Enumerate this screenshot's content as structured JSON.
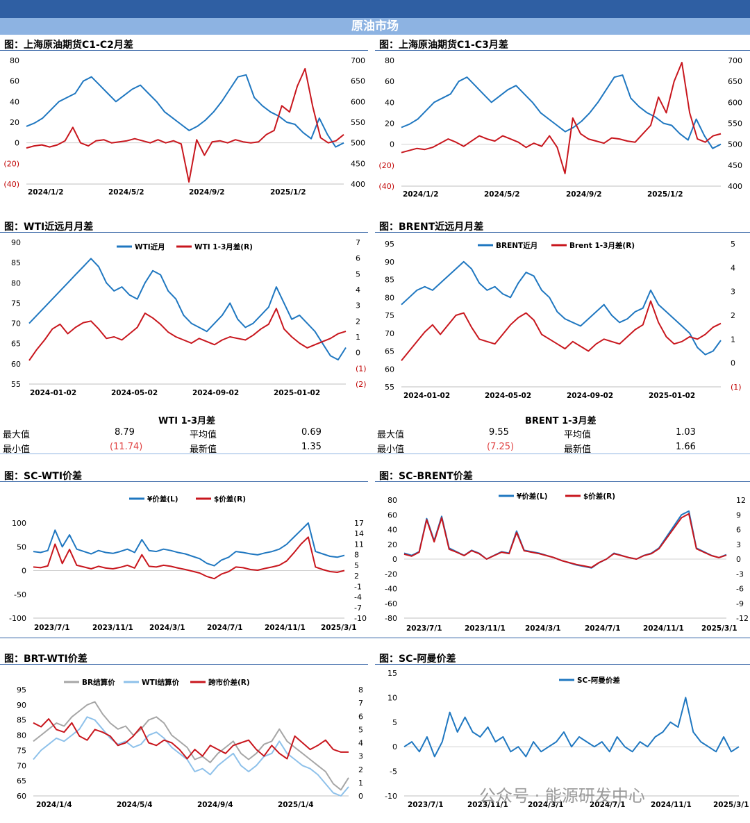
{
  "header": {
    "title": "原油市场"
  },
  "colors": {
    "blue": "#1f77c0",
    "red": "#c8161d",
    "gray": "#a6a6a6",
    "lightblue": "#8ec1ea"
  },
  "watermark": "公众号 · 能源研发中心",
  "stats": {
    "wti": {
      "title": "WTI 1-3月差",
      "max_label": "最大值",
      "max": "8.79",
      "avg_label": "平均值",
      "avg": "0.69",
      "min_label": "最小值",
      "min": "(11.74)",
      "latest_label": "最新值",
      "latest": "1.35"
    },
    "brent": {
      "title": "BRENT 1-3月差",
      "max_label": "最大值",
      "max": "9.55",
      "avg_label": "平均值",
      "avg": "1.03",
      "min_label": "最小值",
      "min": "(7.25)",
      "latest_label": "最新值",
      "latest": "1.66"
    }
  },
  "chart_data": [
    {
      "id": "c1",
      "title": "图：上海原油期货C1-C2月差",
      "type": "line",
      "x_ticks": [
        "2024/1/2",
        "2024/5/2",
        "2024/9/2",
        "2025/1/2"
      ],
      "y_left": {
        "range": [
          -40,
          80
        ],
        "ticks": [
          "80",
          "60",
          "40",
          "20",
          "0",
          "(20)",
          "(40)"
        ]
      },
      "y_right": {
        "range": [
          400,
          700
        ],
        "ticks": [
          "700",
          "650",
          "600",
          "550",
          "500",
          "450",
          "400"
        ]
      },
      "series": [
        {
          "axis": "right",
          "color": "#1f77c0",
          "values": [
            540,
            548,
            560,
            580,
            600,
            610,
            620,
            650,
            660,
            640,
            620,
            600,
            615,
            630,
            640,
            620,
            600,
            575,
            560,
            545,
            530,
            540,
            555,
            575,
            600,
            630,
            660,
            665,
            610,
            590,
            575,
            565,
            550,
            545,
            525,
            510,
            560,
            520,
            490,
            500
          ]
        },
        {
          "axis": "left",
          "color": "#c8161d",
          "values": [
            -5,
            -3,
            -2,
            -4,
            -2,
            2,
            15,
            0,
            -3,
            2,
            3,
            0,
            1,
            2,
            4,
            2,
            0,
            3,
            0,
            2,
            -1,
            -38,
            3,
            -12,
            1,
            2,
            0,
            3,
            1,
            0,
            1,
            8,
            12,
            36,
            30,
            55,
            72,
            35,
            5,
            0,
            2,
            8
          ]
        }
      ]
    },
    {
      "id": "c2",
      "title": "图：上海原油期货C1-C3月差",
      "type": "line",
      "x_ticks": [
        "2024/1/2",
        "2024/5/2",
        "2024/9/2",
        "2025/1/2"
      ],
      "y_left": {
        "range": [
          -40,
          80
        ],
        "ticks": [
          "80",
          "60",
          "40",
          "20",
          "0",
          "(20)",
          "(40)"
        ]
      },
      "y_right": {
        "range": [
          400,
          700
        ],
        "ticks": [
          "700",
          "650",
          "600",
          "550",
          "500",
          "450",
          "400"
        ]
      },
      "series": [
        {
          "axis": "right",
          "color": "#1f77c0",
          "values": [
            540,
            548,
            560,
            580,
            600,
            610,
            620,
            650,
            660,
            640,
            620,
            600,
            615,
            630,
            640,
            620,
            600,
            575,
            560,
            545,
            530,
            540,
            555,
            575,
            600,
            630,
            660,
            665,
            610,
            590,
            575,
            565,
            550,
            545,
            525,
            510,
            560,
            520,
            490,
            500
          ]
        },
        {
          "axis": "left",
          "color": "#c8161d",
          "values": [
            -8,
            -6,
            -4,
            -5,
            -3,
            1,
            5,
            2,
            -2,
            3,
            8,
            5,
            3,
            8,
            5,
            2,
            -3,
            1,
            -2,
            8,
            -3,
            -28,
            25,
            10,
            5,
            3,
            1,
            6,
            5,
            3,
            2,
            10,
            18,
            45,
            30,
            60,
            78,
            30,
            5,
            2,
            8,
            10
          ]
        }
      ]
    },
    {
      "id": "c3",
      "title": "图：WTI近远月月差",
      "type": "line",
      "x_ticks": [
        "2024-01-02",
        "2024-05-02",
        "2024-09-02",
        "2025-01-02"
      ],
      "y_left": {
        "range": [
          55,
          90
        ],
        "ticks": [
          "90",
          "85",
          "80",
          "75",
          "70",
          "65",
          "60",
          "55"
        ]
      },
      "y_right": {
        "range": [
          -2,
          7
        ],
        "ticks": [
          "7",
          "6",
          "5",
          "4",
          "3",
          "2",
          "1",
          "0",
          "(1)",
          "(2)"
        ]
      },
      "legend": [
        "WTI近月",
        "WTI 1-3月差(R)"
      ],
      "series": [
        {
          "name": "WTI近月",
          "axis": "left",
          "color": "#1f77c0",
          "values": [
            70,
            72,
            74,
            76,
            78,
            80,
            82,
            84,
            86,
            84,
            80,
            78,
            79,
            77,
            76,
            80,
            83,
            82,
            78,
            76,
            72,
            70,
            69,
            68,
            70,
            72,
            75,
            71,
            69,
            70,
            72,
            74,
            79,
            75,
            71,
            72,
            70,
            68,
            65,
            62,
            61,
            64
          ]
        },
        {
          "name": "WTI 1-3月差(R)",
          "axis": "right",
          "color": "#c8161d",
          "values": [
            -0.5,
            0.2,
            0.8,
            1.5,
            1.8,
            1.2,
            1.6,
            1.9,
            2.0,
            1.5,
            0.9,
            1.0,
            0.8,
            1.2,
            1.6,
            2.5,
            2.2,
            1.8,
            1.3,
            1.0,
            0.8,
            0.6,
            0.9,
            0.7,
            0.5,
            0.8,
            1.0,
            0.9,
            0.8,
            1.1,
            1.5,
            1.8,
            2.8,
            1.5,
            1.0,
            0.6,
            0.3,
            0.5,
            0.7,
            0.9,
            1.2,
            1.35
          ]
        }
      ]
    },
    {
      "id": "c4",
      "title": "图：BRENT近远月月差",
      "type": "line",
      "x_ticks": [
        "2024-01-02",
        "2024-05-02",
        "2024-09-02",
        "2025-01-02"
      ],
      "y_left": {
        "range": [
          55,
          95
        ],
        "ticks": [
          "95",
          "90",
          "85",
          "80",
          "75",
          "70",
          "65",
          "60",
          "55"
        ]
      },
      "y_right": {
        "range": [
          -1,
          5
        ],
        "ticks": [
          "5",
          "4",
          "3",
          "2",
          "1",
          "0",
          "(1)"
        ]
      },
      "legend": [
        "BRENT近月",
        "Brent 1-3月差(R)"
      ],
      "series": [
        {
          "name": "BRENT近月",
          "axis": "left",
          "color": "#1f77c0",
          "values": [
            78,
            80,
            82,
            83,
            82,
            84,
            86,
            88,
            90,
            88,
            84,
            82,
            83,
            81,
            80,
            84,
            87,
            86,
            82,
            80,
            76,
            74,
            73,
            72,
            74,
            76,
            78,
            75,
            73,
            74,
            76,
            77,
            82,
            78,
            76,
            74,
            72,
            70,
            66,
            64,
            65,
            68
          ]
        },
        {
          "name": "Brent 1-3月差(R)",
          "axis": "right",
          "color": "#c8161d",
          "values": [
            0.1,
            0.5,
            0.9,
            1.3,
            1.6,
            1.2,
            1.6,
            2.0,
            2.1,
            1.5,
            1.0,
            0.9,
            0.8,
            1.2,
            1.6,
            1.9,
            2.1,
            1.8,
            1.2,
            1.0,
            0.8,
            0.6,
            0.9,
            0.7,
            0.5,
            0.8,
            1.0,
            0.9,
            0.8,
            1.1,
            1.4,
            1.6,
            2.6,
            1.7,
            1.1,
            0.8,
            0.9,
            1.1,
            1.0,
            1.2,
            1.5,
            1.66
          ]
        }
      ]
    },
    {
      "id": "c5",
      "title": "图：SC-WTI价差",
      "type": "line",
      "x_ticks": [
        "2023/7/1",
        "2023/11/1",
        "2024/3/1",
        "2024/7/1",
        "2024/11/1",
        "2025/3/1"
      ],
      "y_left": {
        "range": [
          -100,
          100
        ],
        "ticks": [
          "100",
          "50",
          "0",
          "-50",
          "-100"
        ]
      },
      "y_right": {
        "range": [
          -10,
          17
        ],
        "ticks": [
          "17",
          "14",
          "11",
          "8",
          "5",
          "2",
          "-1",
          "-4",
          "-7",
          "-10"
        ]
      },
      "legend": [
        "¥价差(L)",
        "$价差(R)"
      ],
      "series": [
        {
          "name": "¥价差(L)",
          "axis": "left",
          "color": "#1f77c0",
          "values": [
            40,
            38,
            42,
            85,
            50,
            75,
            45,
            40,
            35,
            42,
            38,
            36,
            40,
            45,
            38,
            65,
            42,
            40,
            45,
            42,
            38,
            35,
            30,
            25,
            15,
            10,
            22,
            28,
            40,
            38,
            35,
            33,
            37,
            40,
            45,
            55,
            70,
            85,
            100,
            40,
            35,
            30,
            28,
            32
          ]
        },
        {
          "name": "$价差(R)",
          "axis": "right",
          "color": "#c8161d",
          "values": [
            4.5,
            4.3,
            4.8,
            11,
            5.5,
            9.5,
            5,
            4.5,
            4,
            4.7,
            4.2,
            4,
            4.4,
            5,
            4.2,
            8,
            4.7,
            4.5,
            5,
            4.7,
            4.2,
            3.8,
            3.3,
            2.8,
            1.8,
            1.2,
            2.5,
            3.2,
            4.5,
            4.3,
            3.8,
            3.6,
            4.1,
            4.5,
            5,
            6.2,
            8.5,
            11,
            13,
            4.5,
            3.8,
            3.2,
            3,
            3.5
          ]
        }
      ]
    },
    {
      "id": "c6",
      "title": "图：SC-BRENT价差",
      "type": "line",
      "x_ticks": [
        "2023/7/1",
        "2023/11/1",
        "2024/3/1",
        "2024/7/1",
        "2024/11/1",
        "2025/3/1"
      ],
      "y_left": {
        "range": [
          -80,
          80
        ],
        "ticks": [
          "80",
          "60",
          "40",
          "20",
          "0",
          "-20",
          "-40",
          "-60",
          "-80"
        ]
      },
      "y_right": {
        "range": [
          -12,
          12
        ],
        "ticks": [
          "12",
          "9",
          "6",
          "3",
          "0",
          "-3",
          "-6",
          "-9",
          "-12"
        ]
      },
      "legend": [
        "¥价差(L)",
        "$价差(R)"
      ],
      "series": [
        {
          "name": "¥价差(L)",
          "axis": "left",
          "color": "#1f77c0",
          "values": [
            8,
            5,
            10,
            55,
            25,
            58,
            15,
            10,
            5,
            12,
            8,
            0,
            5,
            10,
            8,
            38,
            12,
            10,
            8,
            5,
            2,
            -2,
            -5,
            -8,
            -10,
            -12,
            -5,
            0,
            8,
            5,
            2,
            0,
            5,
            8,
            15,
            30,
            45,
            60,
            65,
            15,
            10,
            5,
            2,
            6
          ]
        },
        {
          "name": "$价差(R)",
          "axis": "right",
          "color": "#c8161d",
          "values": [
            1,
            0.6,
            1.4,
            8,
            3.5,
            8.4,
            2,
            1.4,
            0.7,
            1.7,
            1.1,
            0,
            0.7,
            1.4,
            1.1,
            5.4,
            1.7,
            1.4,
            1.1,
            0.7,
            0.3,
            -0.3,
            -0.7,
            -1.1,
            -1.4,
            -1.7,
            -0.7,
            0,
            1.1,
            0.7,
            0.3,
            0,
            0.7,
            1.1,
            2.1,
            4.2,
            6.3,
            8.4,
            9.2,
            2.1,
            1.4,
            0.7,
            0.3,
            0.8
          ]
        }
      ]
    },
    {
      "id": "c7",
      "title": "图：BRT-WTI价差",
      "type": "line",
      "x_ticks": [
        "2024/1/4",
        "2024/5/4",
        "2024/9/4",
        "2025/1/4"
      ],
      "y_left": {
        "range": [
          60,
          95
        ],
        "ticks": [
          "95",
          "90",
          "85",
          "80",
          "75",
          "70",
          "65",
          "60"
        ]
      },
      "y_right": {
        "range": [
          0,
          8
        ],
        "ticks": [
          "8",
          "7",
          "6",
          "5",
          "4",
          "3",
          "2",
          "1",
          "0"
        ]
      },
      "legend": [
        "BR结算价",
        "WTI结算价",
        "跨市价差(R)"
      ],
      "series": [
        {
          "name": "BR结算价",
          "axis": "left",
          "color": "#a6a6a6",
          "values": [
            78,
            80,
            82,
            84,
            83,
            86,
            88,
            90,
            91,
            87,
            84,
            82,
            83,
            80,
            82,
            85,
            86,
            84,
            80,
            78,
            76,
            72,
            73,
            71,
            74,
            76,
            78,
            74,
            72,
            74,
            77,
            78,
            82,
            78,
            76,
            74,
            72,
            70,
            68,
            64,
            62,
            66
          ]
        },
        {
          "name": "WTI结算价",
          "axis": "left",
          "color": "#8ec1ea",
          "values": [
            72,
            75,
            77,
            79,
            78,
            80,
            82,
            86,
            85,
            82,
            79,
            77,
            78,
            76,
            77,
            80,
            81,
            79,
            76,
            74,
            72,
            68,
            69,
            67,
            70,
            72,
            74,
            70,
            68,
            70,
            73,
            74,
            78,
            74,
            72,
            70,
            69,
            67,
            64,
            61,
            60,
            63
          ]
        },
        {
          "name": "跨市价差(R)",
          "axis": "right",
          "color": "#c8161d",
          "values": [
            5.5,
            5.2,
            5.8,
            5.0,
            4.8,
            5.5,
            4.5,
            4.2,
            5.0,
            4.8,
            4.5,
            3.8,
            4.0,
            4.5,
            5.2,
            4.0,
            3.8,
            4.2,
            4.0,
            3.5,
            2.8,
            3.5,
            3.0,
            3.8,
            3.5,
            3.2,
            3.8,
            4.0,
            4.2,
            3.5,
            3.0,
            3.8,
            3.2,
            2.8,
            4.5,
            4.0,
            3.5,
            3.8,
            4.2,
            3.5,
            3.3,
            3.3
          ]
        }
      ]
    },
    {
      "id": "c8",
      "title": "图：SC-阿曼价差",
      "type": "line",
      "x_ticks": [
        "2023/7/1",
        "2023/11/1",
        "2024/3/1",
        "2024/7/1",
        "2024/11/1",
        "2025/3/1"
      ],
      "y_left": {
        "range": [
          -10,
          15
        ],
        "ticks": [
          "15",
          "10",
          "5",
          "0",
          "-5",
          "-10"
        ]
      },
      "legend": [
        "SC-阿曼价差"
      ],
      "series": [
        {
          "name": "SC-阿曼价差",
          "axis": "left",
          "color": "#1f77c0",
          "values": [
            0,
            1,
            -1,
            2,
            -2,
            1,
            7,
            3,
            6,
            3,
            2,
            4,
            1,
            2,
            -1,
            0,
            -2,
            1,
            -1,
            0,
            1,
            3,
            0,
            2,
            1,
            0,
            1,
            -1,
            2,
            0,
            -1,
            1,
            0,
            2,
            3,
            5,
            4,
            10,
            3,
            1,
            0,
            -1,
            2,
            -1,
            0
          ]
        }
      ]
    }
  ]
}
